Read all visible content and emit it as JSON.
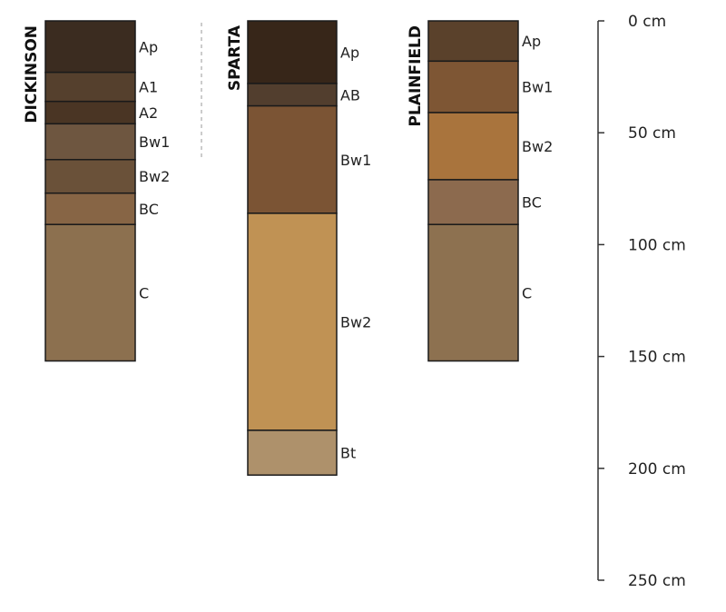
{
  "scale": {
    "max_cm": 250,
    "ticks": [
      {
        "value": 0,
        "label": "0 cm"
      },
      {
        "value": 50,
        "label": "50 cm"
      },
      {
        "value": 100,
        "label": "100 cm"
      },
      {
        "value": 150,
        "label": "150 cm"
      },
      {
        "value": 200,
        "label": "200 cm"
      },
      {
        "value": 250,
        "label": "250 cm"
      }
    ]
  },
  "profiles": [
    {
      "name": "DICKINSON",
      "horizons": [
        {
          "label": "Ap",
          "top": 0,
          "bottom": 23,
          "color": "#3b2c20"
        },
        {
          "label": "A1",
          "top": 23,
          "bottom": 36,
          "color": "#55402d"
        },
        {
          "label": "A2",
          "top": 36,
          "bottom": 46,
          "color": "#4a3524"
        },
        {
          "label": "Bw1",
          "top": 46,
          "bottom": 62,
          "color": "#6e5640"
        },
        {
          "label": "Bw2",
          "top": 62,
          "bottom": 77,
          "color": "#6a5139"
        },
        {
          "label": "BC",
          "top": 77,
          "bottom": 91,
          "color": "#876545"
        },
        {
          "label": "C",
          "top": 91,
          "bottom": 152,
          "color": "#8c704f"
        }
      ]
    },
    {
      "name": "SPARTA",
      "horizons": [
        {
          "label": "Ap",
          "top": 0,
          "bottom": 28,
          "color": "#372619"
        },
        {
          "label": "AB",
          "top": 28,
          "bottom": 38,
          "color": "#523e2e"
        },
        {
          "label": "Bw1",
          "top": 38,
          "bottom": 86,
          "color": "#7b5434"
        },
        {
          "label": "Bw2",
          "top": 86,
          "bottom": 183,
          "color": "#c09254"
        },
        {
          "label": "Bt",
          "top": 183,
          "bottom": 203,
          "color": "#ae916b"
        }
      ]
    },
    {
      "name": "PLAINFIELD",
      "horizons": [
        {
          "label": "Ap",
          "top": 0,
          "bottom": 18,
          "color": "#5a412b"
        },
        {
          "label": "Bw1",
          "top": 18,
          "bottom": 41,
          "color": "#7e5634"
        },
        {
          "label": "Bw2",
          "top": 41,
          "bottom": 71,
          "color": "#a9743d"
        },
        {
          "label": "BC",
          "top": 71,
          "bottom": 91,
          "color": "#8c6a4e"
        },
        {
          "label": "C",
          "top": 91,
          "bottom": 152,
          "color": "#8d7150"
        }
      ]
    }
  ]
}
